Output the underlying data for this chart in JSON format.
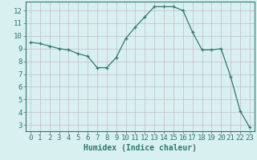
{
  "x": [
    0,
    1,
    2,
    3,
    4,
    5,
    6,
    7,
    8,
    9,
    10,
    11,
    12,
    13,
    14,
    15,
    16,
    17,
    18,
    19,
    20,
    21,
    22,
    23
  ],
  "y": [
    9.5,
    9.4,
    9.2,
    9.0,
    8.9,
    8.6,
    8.4,
    7.5,
    7.5,
    8.3,
    9.8,
    10.7,
    11.5,
    12.3,
    12.3,
    12.3,
    12.0,
    10.3,
    8.9,
    8.9,
    9.0,
    6.8,
    4.1,
    2.8
  ],
  "line_color": "#2d7a6e",
  "marker": "+",
  "bg_color": "#d9f0f0",
  "grid_color_major": "#c8b8c8",
  "grid_color_minor": "#e0d0e0",
  "xlabel": "Humidex (Indice chaleur)",
  "xlim": [
    -0.5,
    23.5
  ],
  "ylim": [
    2.5,
    12.7
  ],
  "yticks": [
    3,
    4,
    5,
    6,
    7,
    8,
    9,
    10,
    11,
    12
  ],
  "xticks": [
    0,
    1,
    2,
    3,
    4,
    5,
    6,
    7,
    8,
    9,
    10,
    11,
    12,
    13,
    14,
    15,
    16,
    17,
    18,
    19,
    20,
    21,
    22,
    23
  ],
  "xlabel_fontsize": 7,
  "tick_fontsize": 6.5,
  "tick_color": "#2d7a6e",
  "axis_color": "#2d7a6e",
  "line_width": 0.9,
  "marker_size": 3.5
}
